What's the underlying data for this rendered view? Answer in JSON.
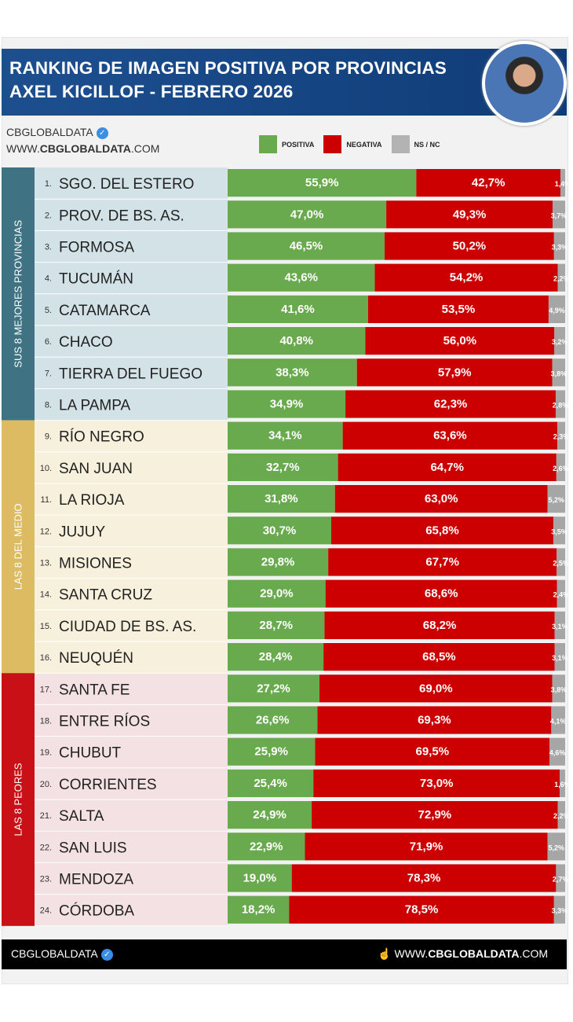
{
  "header": {
    "title_line1": "RANKING DE IMAGEN POSITIVA POR PROVINCIAS",
    "title_line2": "AXEL KICILLOF - FEBRERO 2026"
  },
  "brand": {
    "name": "CBGLOBALDATA",
    "url_prefix": "WWW.",
    "url_bold": "CBGLOBALDATA",
    "url_suffix": ".COM"
  },
  "footer": {
    "left": "CBGLOBALDATA",
    "right_prefix": "WWW.",
    "right_bold": "CBGLOBALDATA",
    "right_suffix": ".COM"
  },
  "chart_data": {
    "type": "bar",
    "orientation": "horizontal-stacked",
    "legend_position": "top",
    "colors": {
      "positiva": "#6aaa4f",
      "negativa": "#cc0000",
      "nsnc": "#a6a6a6"
    },
    "legend": [
      "POSITIVA",
      "NEGATIVA",
      "NS / NC"
    ],
    "groups": [
      {
        "label": "SUS 8 MEJORES PROVINCIAS",
        "color": "#3f7282",
        "bg": "#d3e2e7",
        "rows": [
          1,
          8
        ]
      },
      {
        "label": "LAS 8 DEL MEDIO",
        "color": "#dcbb63",
        "bg": "#f7f0dc",
        "rows": [
          9,
          16
        ]
      },
      {
        "label": "LAS 8 PEORES",
        "color": "#c81016",
        "bg": "#f3e1e3",
        "rows": [
          17,
          24
        ]
      }
    ],
    "categories": [
      "1.|SGO. DEL ESTERO",
      "2.|PROV. DE BS. AS.",
      "3.|FORMOSA",
      "4.|TUCUMÁN",
      "5.|CATAMARCA",
      "6.|CHACO",
      "7.|TIERRA DEL FUEGO",
      "8.|LA PAMPA",
      "9.|RÍO NEGRO",
      "10.|SAN JUAN",
      "11.|LA RIOJA",
      "12.|JUJUY",
      "13.|MISIONES",
      "14.|SANTA CRUZ",
      "15.|CIUDAD DE BS. AS.",
      "16.|NEUQUÉN",
      "17.|SANTA FE",
      "18.|ENTRE RÍOS",
      "19.|CHUBUT",
      "20.|CORRIENTES",
      "21.|SALTA",
      "22.|SAN LUIS",
      "23.|MENDOZA",
      "24.|CÓRDOBA"
    ],
    "series": [
      {
        "name": "POSITIVA",
        "values": [
          55.9,
          47.0,
          46.5,
          43.6,
          41.6,
          40.8,
          38.3,
          34.9,
          34.1,
          32.7,
          31.8,
          30.7,
          29.8,
          29.0,
          28.7,
          28.4,
          27.2,
          26.6,
          25.9,
          25.4,
          24.9,
          22.9,
          19.0,
          18.2
        ]
      },
      {
        "name": "NEGATIVA",
        "values": [
          42.7,
          49.3,
          50.2,
          54.2,
          53.5,
          56.0,
          57.9,
          62.3,
          63.6,
          64.7,
          63.0,
          65.8,
          67.7,
          68.6,
          68.2,
          68.5,
          69.0,
          69.3,
          69.5,
          73.0,
          72.9,
          71.9,
          78.3,
          78.5
        ]
      },
      {
        "name": "NS / NC",
        "values": [
          1.4,
          3.7,
          3.3,
          2.2,
          4.9,
          3.2,
          3.8,
          2.8,
          2.3,
          2.6,
          5.2,
          3.5,
          2.5,
          2.4,
          3.1,
          3.1,
          3.8,
          4.1,
          4.6,
          1.6,
          2.2,
          5.2,
          2.7,
          3.3
        ]
      }
    ]
  }
}
